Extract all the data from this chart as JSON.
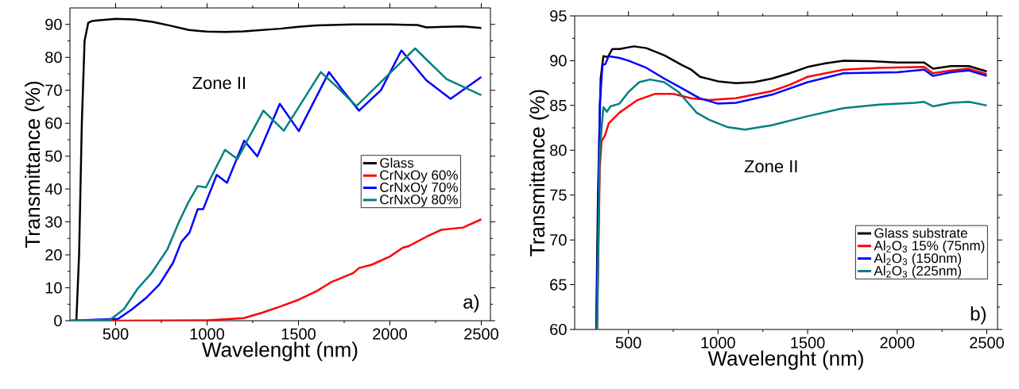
{
  "chart_data": [
    {
      "type": "line",
      "xlabel": "Wavelenght (nm)",
      "ylabel": "Transmittance (%)",
      "xlim": [
        250,
        2550
      ],
      "ylim": [
        0,
        95
      ],
      "xticks": [
        500,
        1000,
        1500,
        2000,
        2500
      ],
      "yticks": [
        0,
        10,
        20,
        30,
        40,
        50,
        60,
        70,
        80,
        90
      ],
      "legend": "right",
      "annotations": [
        "Zone II",
        "a)"
      ],
      "series": [
        {
          "name": "Glass",
          "color": "#000000",
          "x": [
            285,
            300,
            315,
            330,
            350,
            370,
            400,
            500,
            600,
            700,
            800,
            900,
            1000,
            1100,
            1200,
            1400,
            1500,
            1600,
            1800,
            2000,
            2150,
            2200,
            2300,
            2400,
            2500
          ],
          "values": [
            0,
            20,
            60,
            85,
            90.5,
            91,
            91.2,
            91.7,
            91.5,
            90.8,
            89.6,
            88.3,
            87.8,
            87.7,
            87.9,
            88.7,
            89.3,
            89.7,
            90,
            90,
            89.8,
            89.1,
            89.3,
            89.4,
            88.9
          ]
        },
        {
          "name": "CrNxOy 60%",
          "color": "#ff0000",
          "x": [
            250,
            500,
            1000,
            1200,
            1263,
            1300,
            1400,
            1502,
            1600,
            1682,
            1800,
            1831,
            1900,
            2000,
            2071,
            2100,
            2200,
            2280,
            2400,
            2500
          ],
          "values": [
            0,
            0,
            0.1,
            0.8,
            1.8,
            2.4,
            4.3,
            6.4,
            9,
            11.8,
            14.5,
            16,
            17,
            19.5,
            22.2,
            22.6,
            25.5,
            27.6,
            28.3,
            30.8
          ]
        },
        {
          "name": "CrNxOy 70%",
          "color": "#0000ff",
          "x": [
            250,
            515,
            590,
            664,
            739,
            814,
            859,
            904,
            949,
            979,
            1053,
            1109,
            1203,
            1275,
            1398,
            1502,
            1667,
            1742,
            1831,
            1951,
            2063,
            2200,
            2332,
            2500
          ],
          "values": [
            0,
            0.6,
            3.5,
            6.8,
            11,
            17.6,
            23.9,
            26.8,
            33.9,
            33.9,
            44.3,
            41.9,
            54.7,
            49.9,
            65.9,
            57.6,
            75.5,
            70,
            63.8,
            70,
            82.1,
            73,
            67.4,
            74
          ]
        },
        {
          "name": "CrNxOy 80%",
          "color": "#008080",
          "x": [
            250,
            470,
            545,
            620,
            694,
            784,
            844,
            897,
            949,
            994,
            1098,
            1166,
            1308,
            1420,
            1622,
            1712,
            1817,
            1951,
            2138,
            2310,
            2500
          ],
          "values": [
            0,
            0.3,
            3.5,
            9.7,
            14.3,
            21.8,
            29.7,
            35.9,
            40.9,
            40.5,
            51.9,
            49.1,
            63.8,
            57.7,
            75.5,
            70.9,
            65.2,
            72.5,
            82.7,
            73.4,
            68.5
          ]
        }
      ]
    },
    {
      "type": "line",
      "xlabel": "Wavelenght (nm)",
      "ylabel": "Transmittance (%)",
      "xlim": [
        200,
        2560
      ],
      "ylim": [
        60,
        95
      ],
      "xticks": [
        500,
        1000,
        1500,
        2000,
        2500
      ],
      "yticks": [
        60,
        65,
        70,
        75,
        80,
        85,
        90,
        95
      ],
      "legend": "bottom right",
      "annotations": [
        "Zone II",
        "b)"
      ],
      "series": [
        {
          "name": "Glass substrate",
          "color": "#000000",
          "x": [
            320,
            330,
            345,
            360,
            385,
            410,
            450,
            530,
            600,
            700,
            800,
            850,
            900,
            1000,
            1100,
            1200,
            1300,
            1400,
            1500,
            1600,
            1700,
            1850,
            2000,
            2150,
            2200,
            2300,
            2400,
            2500
          ],
          "values": [
            60,
            75,
            88,
            90.5,
            90.4,
            91.3,
            91.3,
            91.6,
            91.4,
            90.6,
            89.5,
            89,
            88.2,
            87.7,
            87.5,
            87.6,
            88,
            88.6,
            89.3,
            89.7,
            90,
            89.95,
            89.8,
            89.8,
            89.1,
            89.4,
            89.4,
            88.8
          ]
        },
        {
          "name": "Al$_{2}$O$_{3}$ 15% (75nm)",
          "color": "#ff0000",
          "x": [
            325,
            340,
            350,
            370,
            390,
            450,
            550,
            650,
            750,
            850,
            950,
            1100,
            1300,
            1400,
            1500,
            1700,
            1900,
            2150,
            2200,
            2300,
            2400,
            2500
          ],
          "values": [
            60,
            78,
            81,
            81.7,
            83,
            84.2,
            85.6,
            86.3,
            86.3,
            85.8,
            85.6,
            85.8,
            86.6,
            87.3,
            88.2,
            89,
            89.2,
            89.3,
            88.6,
            88.9,
            89.1,
            88.5
          ]
        },
        {
          "name": "Al$_{2}$O$_{3}$ (150nm)",
          "color": "#0000ff",
          "x": [
            322,
            340,
            355,
            370,
            390,
            450,
            500,
            600,
            700,
            800,
            870,
            900,
            1000,
            1100,
            1300,
            1500,
            1700,
            2000,
            2150,
            2200,
            2300,
            2400,
            2500
          ],
          "values": [
            60,
            85,
            89.5,
            89.6,
            90.5,
            90.3,
            90,
            89.2,
            88,
            86.9,
            86.1,
            85.8,
            85.2,
            85.3,
            86.2,
            87.6,
            88.6,
            88.7,
            89,
            88.3,
            88.7,
            88.9,
            88.3
          ]
        },
        {
          "name": "Al$_{2}$O$_{3}$ (225nm)",
          "color": "#008080",
          "x": [
            325,
            340,
            360,
            380,
            400,
            450,
            500,
            560,
            620,
            700,
            780,
            850,
            880,
            950,
            1050,
            1150,
            1300,
            1500,
            1700,
            1900,
            2100,
            2150,
            2200,
            2300,
            2400,
            2500
          ],
          "values": [
            60,
            80,
            84.8,
            84.3,
            84.9,
            85.2,
            86.5,
            87.6,
            87.9,
            87.6,
            86.5,
            84.9,
            84.2,
            83.4,
            82.6,
            82.3,
            82.8,
            83.8,
            84.7,
            85.1,
            85.3,
            85.4,
            84.9,
            85.3,
            85.4,
            85
          ]
        }
      ]
    }
  ]
}
